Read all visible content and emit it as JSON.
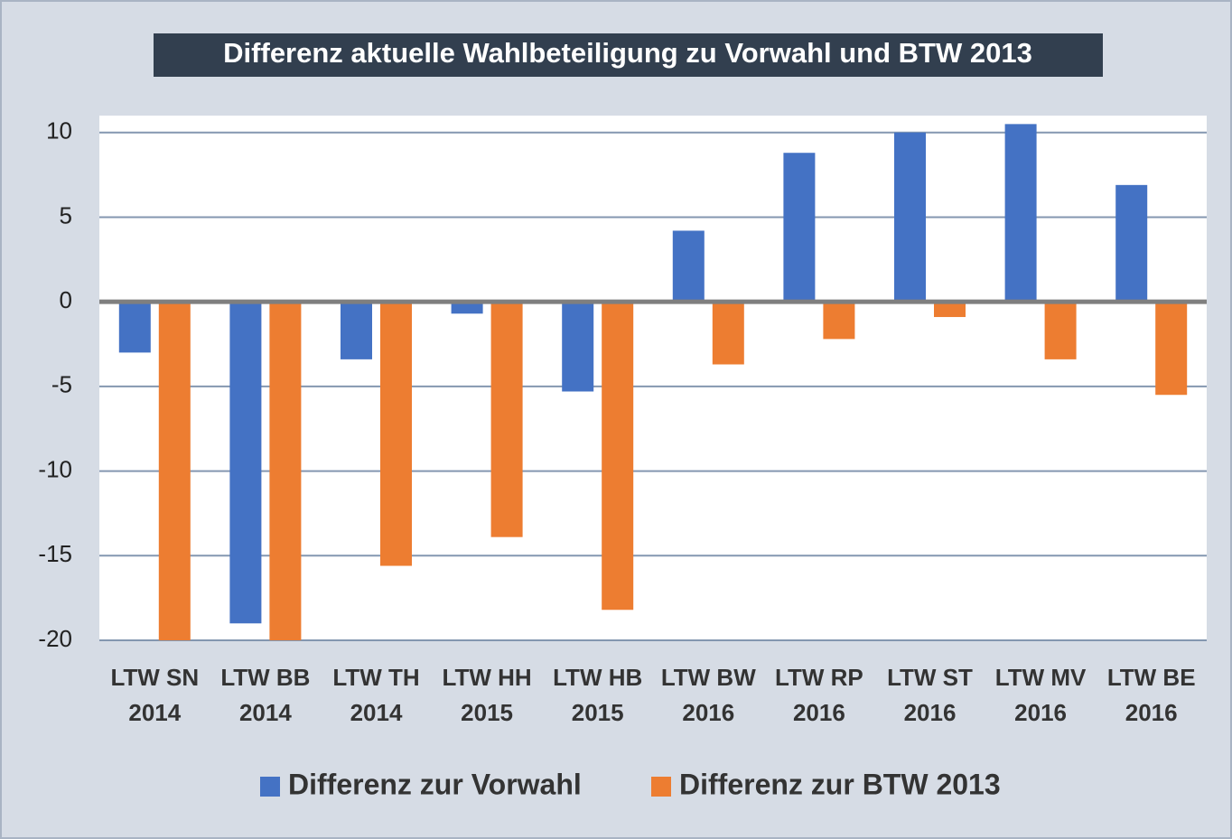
{
  "chart_data": {
    "type": "bar",
    "title": "Differenz aktuelle Wahlbeteiligung zu Vorwahl und BTW 2013",
    "categories": [
      [
        "LTW SN",
        "2014"
      ],
      [
        "LTW BB",
        "2014"
      ],
      [
        "LTW TH",
        "2014"
      ],
      [
        "LTW HH",
        "2015"
      ],
      [
        "LTW HB",
        "2015"
      ],
      [
        "LTW BW",
        "2016"
      ],
      [
        "LTW RP",
        "2016"
      ],
      [
        "LTW ST",
        "2016"
      ],
      [
        "LTW MV",
        "2016"
      ],
      [
        "LTW BE",
        "2016"
      ]
    ],
    "series": [
      {
        "name": "Differenz zur Vorwahl",
        "color": "#4472c4",
        "values": [
          -3.0,
          -19.0,
          -3.4,
          -0.7,
          -5.3,
          4.2,
          8.8,
          10.0,
          10.5,
          6.9
        ]
      },
      {
        "name": "Differenz zur BTW 2013",
        "color": "#ed7d31",
        "values": [
          -20,
          -20,
          -15.6,
          -13.9,
          -18.2,
          -3.7,
          -2.2,
          -0.9,
          -3.4,
          -5.5
        ]
      }
    ],
    "ylim": [
      -20,
      11
    ],
    "yticks": [
      -20,
      -15,
      -10,
      -5,
      0,
      5,
      10
    ],
    "grid": true,
    "legend": "bottom"
  }
}
